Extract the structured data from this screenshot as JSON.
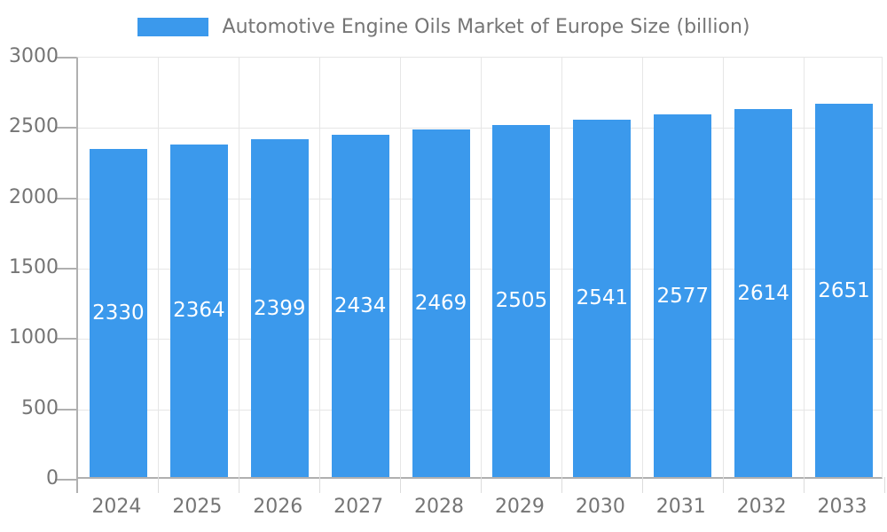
{
  "page": {
    "background_color": "#ffffff"
  },
  "legend": {
    "label": "Automotive Engine Oils Market of Europe Size (billion)",
    "swatch_color": "#3B99EC",
    "position": "top-center"
  },
  "chart_data": {
    "type": "bar",
    "title": "Automotive Engine Oils Market of Europe Size (billion)",
    "series_name": "Automotive Engine Oils Market of Europe Size (billion)",
    "categories": [
      "2024",
      "2025",
      "2026",
      "2027",
      "2028",
      "2029",
      "2030",
      "2031",
      "2032",
      "2033"
    ],
    "values": [
      2330,
      2364,
      2399,
      2434,
      2469,
      2505,
      2541,
      2577,
      2614,
      2651
    ],
    "xlabel": "",
    "ylabel": "",
    "ylim": [
      0,
      3000
    ],
    "y_ticks": [
      0,
      500,
      1000,
      1500,
      2000,
      2500,
      3000
    ],
    "grid": true,
    "legend_position": "top",
    "value_labels": "inside-center",
    "colors": {
      "bar": "#3B99EC",
      "value_label_text": "#ffffff",
      "axis_text": "#757575",
      "gridline": "#E6E6E6",
      "axis_line": "#B0B0B0"
    }
  }
}
